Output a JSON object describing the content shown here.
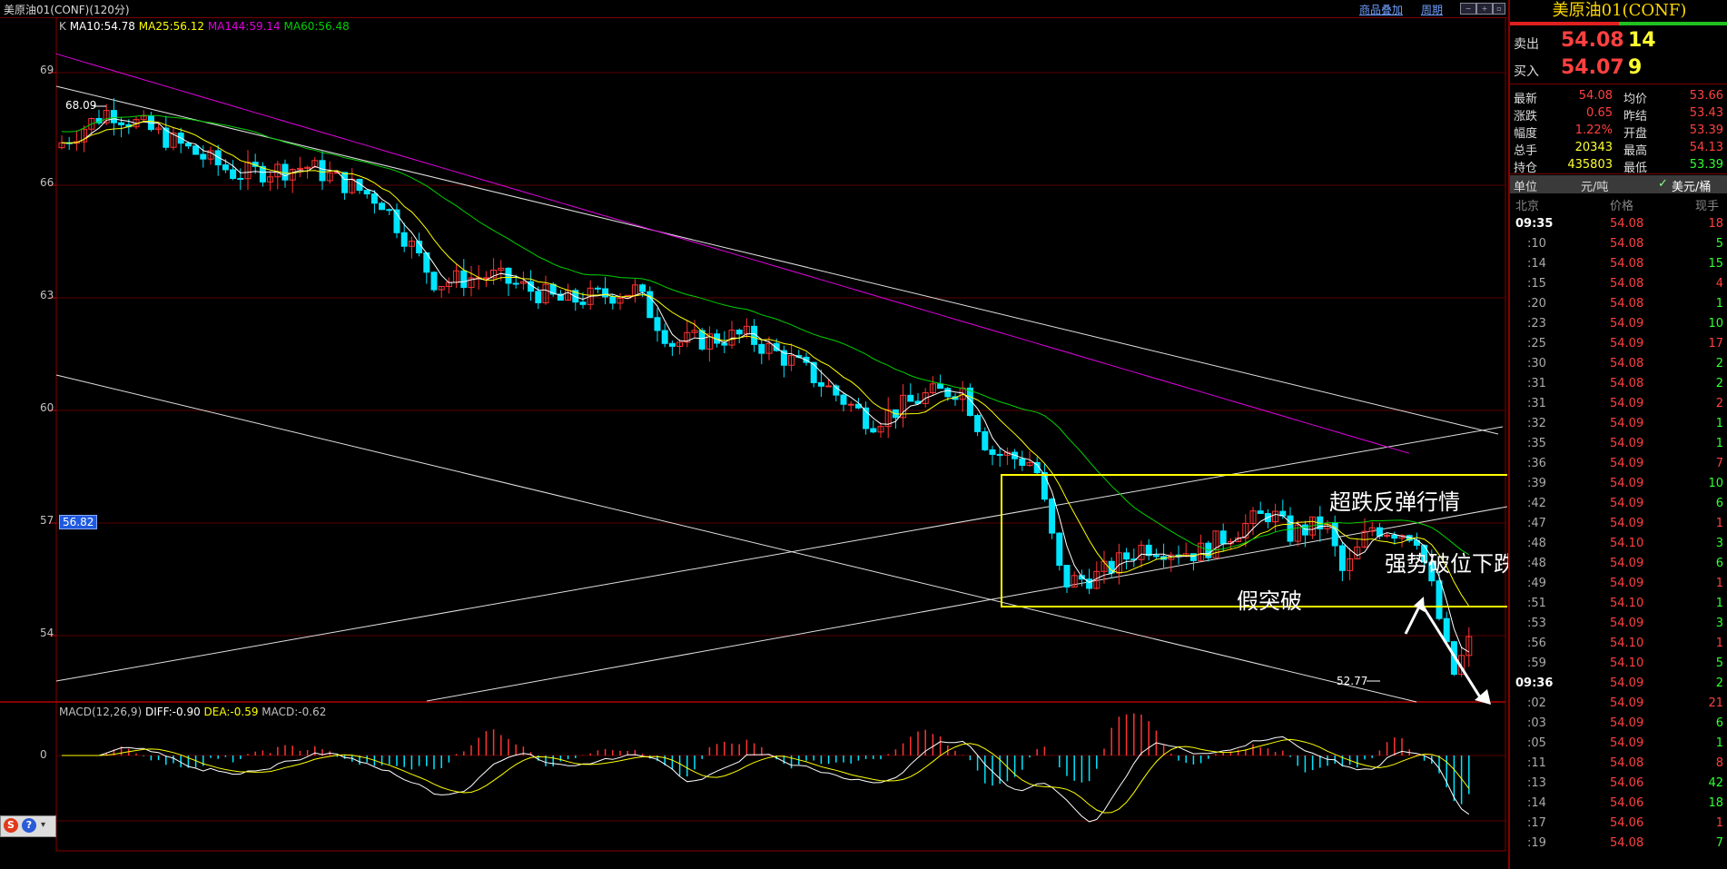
{
  "window": {
    "title": "美原油01(CONF)(120分)",
    "link_overlay": "商品叠加",
    "link_period": "周期"
  },
  "ma_legend": {
    "k": "K",
    "ma10": "MA10:54.78",
    "ma25": "MA25:56.12",
    "ma144": "MA144:59.14",
    "ma60": "MA60:56.48"
  },
  "macd_legend": {
    "name": "MACD(12,26,9)",
    "diff": "DIFF:-0.90",
    "dea": "DEA:-0.59",
    "macd": "MACD:-0.62"
  },
  "y_axis": [
    "69",
    "66",
    "63",
    "60",
    "57",
    "54"
  ],
  "macd_axis": [
    "0"
  ],
  "current_price_tag": "56.82",
  "price_labels": {
    "high": "68.09",
    "low": "52.77"
  },
  "annotations": {
    "rebound": "超跌反弹行情",
    "false_break": "假突破",
    "strong_break": "强势破位下跌"
  },
  "colors": {
    "up": "#ff3333",
    "down": "#00e5ff",
    "ma10": "#ffffff",
    "ma25": "#ffff00",
    "ma60": "#00d000",
    "ma144": "#e000e0",
    "box": "#ffff00"
  },
  "chart_data": {
    "type": "candlestick",
    "instrument": "美原油01(CONF)",
    "period": "120分",
    "ylim": [
      52.2,
      70.2
    ],
    "ma_last": {
      "MA10": 54.78,
      "MA25": 56.12,
      "MA60": 56.48,
      "MA144": 59.14
    },
    "macd_last": {
      "DIFF": -0.9,
      "DEA": -0.59,
      "MACD": -0.62
    },
    "marked_high": 68.09,
    "marked_low": 52.77
  },
  "panel": {
    "title": "美原油01(CONF)",
    "sell": {
      "label": "卖出",
      "price": "54.08",
      "vol": "14"
    },
    "buy": {
      "label": "买入",
      "price": "54.07",
      "vol": "9"
    },
    "stats": [
      {
        "l1": "最新",
        "v1": "54.08",
        "l2": "均价",
        "v2": "53.66"
      },
      {
        "l1": "涨跌",
        "v1": "0.65",
        "l2": "昨结",
        "v2": "53.43"
      },
      {
        "l1": "幅度",
        "v1": "1.22%",
        "l2": "开盘",
        "v2": "53.39"
      },
      {
        "l1": "总手",
        "v1": "20343",
        "l2": "最高",
        "v2": "54.13"
      },
      {
        "l1": "持仓",
        "v1": "435803",
        "l2": "最低",
        "v2": "53.39"
      }
    ],
    "unit": {
      "label": "单位",
      "cny": "元/吨",
      "usd": "美元/桶",
      "check": "✓"
    },
    "ticks_header": {
      "time": "北京",
      "price": "价格",
      "vol": "现手"
    },
    "ticks": [
      {
        "t": "09:35",
        "p": "54.08",
        "v": "18"
      },
      {
        "t": ":10",
        "p": "54.08",
        "v": "5"
      },
      {
        "t": ":14",
        "p": "54.08",
        "v": "15"
      },
      {
        "t": ":15",
        "p": "54.08",
        "v": "4"
      },
      {
        "t": ":20",
        "p": "54.08",
        "v": "1"
      },
      {
        "t": ":23",
        "p": "54.09",
        "v": "10"
      },
      {
        "t": ":25",
        "p": "54.09",
        "v": "17"
      },
      {
        "t": ":30",
        "p": "54.08",
        "v": "2"
      },
      {
        "t": ":31",
        "p": "54.08",
        "v": "2"
      },
      {
        "t": ":31",
        "p": "54.09",
        "v": "2"
      },
      {
        "t": ":32",
        "p": "54.09",
        "v": "1"
      },
      {
        "t": ":35",
        "p": "54.09",
        "v": "1"
      },
      {
        "t": ":36",
        "p": "54.09",
        "v": "7"
      },
      {
        "t": ":39",
        "p": "54.09",
        "v": "10"
      },
      {
        "t": ":42",
        "p": "54.09",
        "v": "6"
      },
      {
        "t": ":47",
        "p": "54.09",
        "v": "1"
      },
      {
        "t": ":48",
        "p": "54.10",
        "v": "3"
      },
      {
        "t": ":48",
        "p": "54.09",
        "v": "6"
      },
      {
        "t": ":49",
        "p": "54.09",
        "v": "1"
      },
      {
        "t": ":51",
        "p": "54.10",
        "v": "1"
      },
      {
        "t": ":53",
        "p": "54.09",
        "v": "3"
      },
      {
        "t": ":56",
        "p": "54.10",
        "v": "1"
      },
      {
        "t": ":59",
        "p": "54.10",
        "v": "5"
      },
      {
        "t": "09:36",
        "p": "54.09",
        "v": "2"
      },
      {
        "t": ":02",
        "p": "54.09",
        "v": "21"
      },
      {
        "t": ":03",
        "p": "54.09",
        "v": "6"
      },
      {
        "t": ":05",
        "p": "54.09",
        "v": "1"
      },
      {
        "t": ":11",
        "p": "54.08",
        "v": "8"
      },
      {
        "t": ":13",
        "p": "54.06",
        "v": "42"
      },
      {
        "t": ":14",
        "p": "54.06",
        "v": "18"
      },
      {
        "t": ":17",
        "p": "54.06",
        "v": "1"
      },
      {
        "t": ":19",
        "p": "54.08",
        "v": "7"
      }
    ]
  }
}
